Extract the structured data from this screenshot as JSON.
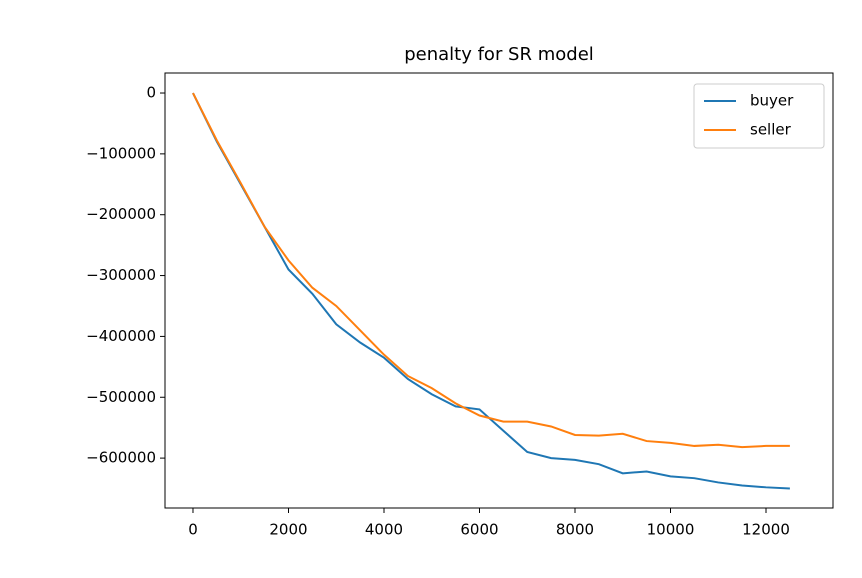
{
  "chart_data": {
    "type": "line",
    "title": "penalty for SR model",
    "x": [
      0,
      500,
      1000,
      1500,
      2000,
      2500,
      3000,
      3500,
      4000,
      4500,
      5000,
      5500,
      6000,
      6500,
      7000,
      7500,
      8000,
      8500,
      9000,
      9500,
      10000,
      10500,
      11000,
      11500,
      12000,
      12500
    ],
    "series": [
      {
        "name": "buyer",
        "color": "#1f77b4",
        "values": [
          0,
          -80000,
          -150000,
          -220000,
          -290000,
          -330000,
          -380000,
          -410000,
          -435000,
          -470000,
          -495000,
          -515000,
          -520000,
          -555000,
          -590000,
          -600000,
          -603000,
          -610000,
          -625000,
          -622000,
          -630000,
          -633000,
          -640000,
          -645000,
          -648000,
          -650000
        ]
      },
      {
        "name": "seller",
        "color": "#ff7f0e",
        "values": [
          0,
          -78000,
          -148000,
          -220000,
          -275000,
          -320000,
          -350000,
          -390000,
          -430000,
          -465000,
          -485000,
          -510000,
          -530000,
          -540000,
          -540000,
          -548000,
          -562000,
          -563000,
          -560000,
          -572000,
          -575000,
          -580000,
          -578000,
          -582000,
          -580000,
          -580000
        ]
      }
    ],
    "xlim": [
      -586,
      13403
    ],
    "xticks": [
      0,
      2000,
      4000,
      6000,
      8000,
      10000,
      12000
    ],
    "ylim": [
      -682000,
      32900
    ],
    "yticks": [
      {
        "value": 0,
        "label": "0"
      },
      {
        "value": -100000,
        "label": "−100000"
      },
      {
        "value": -200000,
        "label": "−200000"
      },
      {
        "value": -300000,
        "label": "−300000"
      },
      {
        "value": -400000,
        "label": "−400000"
      },
      {
        "value": -500000,
        "label": "−500000"
      },
      {
        "value": -600000,
        "label": "−600000"
      }
    ],
    "legend": "upper right"
  }
}
